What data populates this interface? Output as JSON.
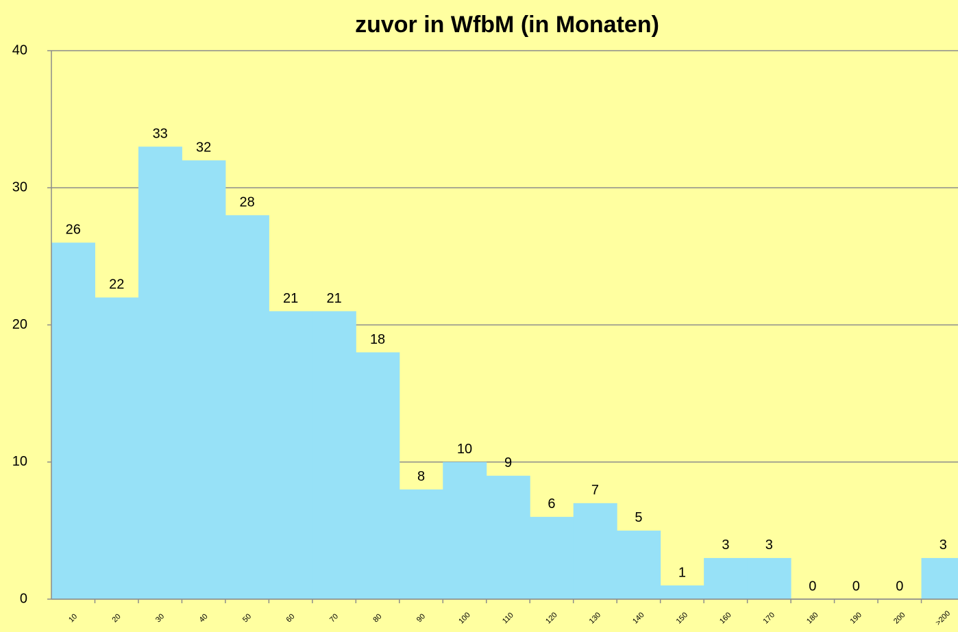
{
  "chart_data": {
    "type": "bar",
    "title": "zuvor in WfbM (in Monaten)",
    "categories": [
      "10",
      "20",
      "30",
      "40",
      "50",
      "60",
      "70",
      "80",
      "90",
      "100",
      "110",
      "120",
      "130",
      "140",
      "150",
      "160",
      "170",
      "180",
      "190",
      "200",
      ">200"
    ],
    "values": [
      26,
      22,
      33,
      32,
      28,
      21,
      21,
      18,
      8,
      10,
      9,
      6,
      7,
      5,
      1,
      3,
      3,
      0,
      0,
      0,
      3
    ],
    "color": "#97e1f7",
    "ylim": [
      0,
      40
    ],
    "yticks": [
      0,
      10,
      20,
      30,
      40
    ],
    "grid": true
  }
}
